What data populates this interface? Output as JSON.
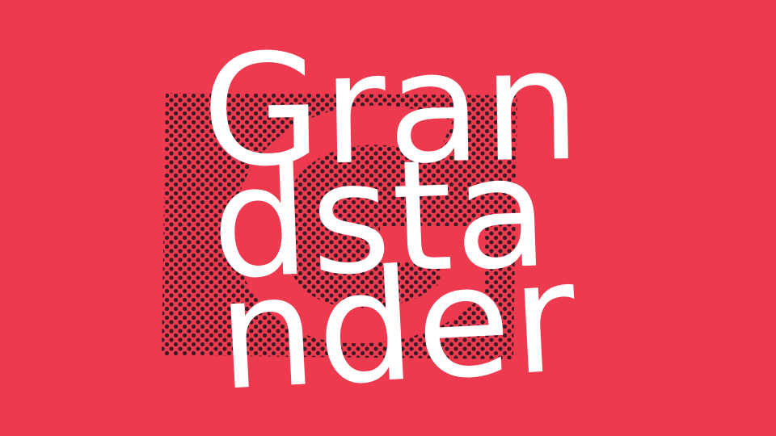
{
  "background_color": "#ee3a4e",
  "ink_color": "#3a1a24",
  "text_color": "#ffffff",
  "wordmark": {
    "line1": "Gran",
    "line2": "dsta",
    "line3": "nder"
  }
}
